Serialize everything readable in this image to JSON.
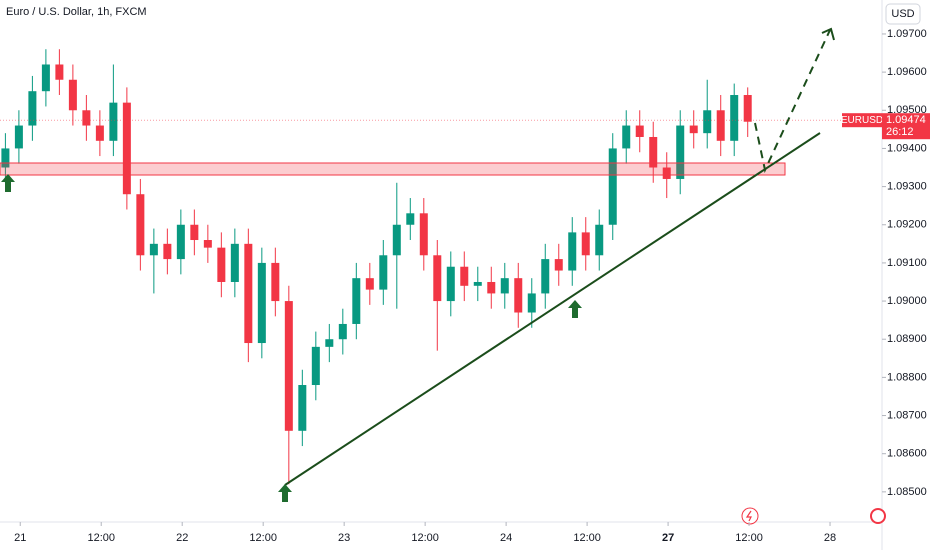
{
  "chart_data": {
    "type": "candlestick",
    "title": "Euro / U.S. Dollar, 1h, FXCM",
    "currency": "USD",
    "symbol": "EURUSD",
    "last_price": 1.09474,
    "countdown": "26:12",
    "up_color": "#089981",
    "down_color": "#f23645",
    "open": [
      1.0935,
      1.094,
      1.0946,
      1.0955,
      1.0962,
      1.0958,
      1.095,
      1.0946,
      1.0942,
      1.0952,
      1.0928,
      1.0912,
      1.0915,
      1.0911,
      1.092,
      1.0916,
      1.0914,
      1.0905,
      1.0915,
      1.0889,
      1.091,
      1.09,
      1.0866,
      1.0878,
      1.0888,
      1.089,
      1.0894,
      1.0906,
      1.0903,
      1.0912,
      1.092,
      1.0923,
      1.0912,
      1.09,
      1.0909,
      1.0904,
      1.0905,
      1.0902,
      1.0906,
      1.0897,
      1.0902,
      1.0911,
      1.0908,
      1.0918,
      1.0912,
      1.092,
      1.094,
      1.0946,
      1.0943,
      1.0935,
      1.0932,
      1.0946,
      1.0944,
      1.095,
      1.0942,
      1.0954
    ],
    "high": [
      1.0944,
      1.095,
      1.0959,
      1.0966,
      1.0966,
      1.0962,
      1.0954,
      1.095,
      1.0962,
      1.0956,
      1.0932,
      1.0919,
      1.0919,
      1.0924,
      1.0924,
      1.092,
      1.0918,
      1.0919,
      1.0919,
      1.0914,
      1.0914,
      1.0904,
      1.0882,
      1.0892,
      1.0894,
      1.0898,
      1.091,
      1.091,
      1.0916,
      1.0931,
      1.0927,
      1.0927,
      1.0916,
      1.0913,
      1.0913,
      1.0909,
      1.0909,
      1.091,
      1.091,
      1.0906,
      1.0915,
      1.0915,
      1.0922,
      1.0922,
      1.0924,
      1.0944,
      1.095,
      1.095,
      1.0947,
      1.0939,
      1.095,
      1.095,
      1.0958,
      1.0954,
      1.0957,
      1.0956
    ],
    "low": [
      1.0931,
      1.0936,
      1.0942,
      1.0951,
      1.0954,
      1.0946,
      1.0942,
      1.0938,
      1.0938,
      1.0924,
      1.0908,
      1.0902,
      1.0907,
      1.0907,
      1.0912,
      1.091,
      1.0901,
      1.0901,
      1.0884,
      1.0885,
      1.0896,
      1.0852,
      1.0862,
      1.0874,
      1.0884,
      1.0886,
      1.089,
      1.0899,
      1.0899,
      1.0898,
      1.0916,
      1.0908,
      1.0887,
      1.0896,
      1.09,
      1.09,
      1.0898,
      1.0898,
      1.0893,
      1.0893,
      1.0898,
      1.0904,
      1.0904,
      1.0908,
      1.0908,
      1.0916,
      1.0936,
      1.0939,
      1.0931,
      1.0927,
      1.0928,
      1.094,
      1.094,
      1.0938,
      1.0938,
      1.0943
    ],
    "close": [
      1.094,
      1.0946,
      1.0955,
      1.0962,
      1.0958,
      1.095,
      1.0946,
      1.0942,
      1.0952,
      1.0928,
      1.0912,
      1.0915,
      1.0911,
      1.092,
      1.0916,
      1.0914,
      1.0905,
      1.0915,
      1.0889,
      1.091,
      1.09,
      1.0866,
      1.0878,
      1.0888,
      1.089,
      1.0894,
      1.0906,
      1.0903,
      1.0912,
      1.092,
      1.0923,
      1.0912,
      1.09,
      1.0909,
      1.0904,
      1.0905,
      1.0902,
      1.0906,
      1.0897,
      1.0902,
      1.0911,
      1.0908,
      1.0918,
      1.0912,
      1.092,
      1.094,
      1.0946,
      1.0943,
      1.0935,
      1.0932,
      1.0946,
      1.0944,
      1.095,
      1.0942,
      1.0954,
      1.0947
    ],
    "ylim": [
      1.08421,
      1.09789
    ],
    "yticks": [
      {
        "value": 1.085,
        "label": "1.08500"
      },
      {
        "value": 1.086,
        "label": "1.08600"
      },
      {
        "value": 1.087,
        "label": "1.08700"
      },
      {
        "value": 1.088,
        "label": "1.08800"
      },
      {
        "value": 1.089,
        "label": "1.08900"
      },
      {
        "value": 1.09,
        "label": "1.09000"
      },
      {
        "value": 1.091,
        "label": "1.09100"
      },
      {
        "value": 1.092,
        "label": "1.09200"
      },
      {
        "value": 1.093,
        "label": "1.09300"
      },
      {
        "value": 1.094,
        "label": "1.09400"
      },
      {
        "value": 1.095,
        "label": "1.09500"
      },
      {
        "value": 1.096,
        "label": "1.09600"
      },
      {
        "value": 1.097,
        "label": "1.09700"
      }
    ],
    "xlim": [
      -3,
      127.7
    ],
    "xticks": [
      {
        "value": 0,
        "label": "21"
      },
      {
        "value": 12,
        "label": "12:00"
      },
      {
        "value": 24,
        "label": "22"
      },
      {
        "value": 36,
        "label": "12:00"
      },
      {
        "value": 48,
        "label": "23"
      },
      {
        "value": 60,
        "label": "12:00"
      },
      {
        "value": 72,
        "label": "24"
      },
      {
        "value": 84,
        "label": "12:00"
      },
      {
        "value": 96,
        "label": "27"
      },
      {
        "value": 108,
        "label": "12:00"
      },
      {
        "value": 120,
        "label": "28"
      }
    ]
  }
}
